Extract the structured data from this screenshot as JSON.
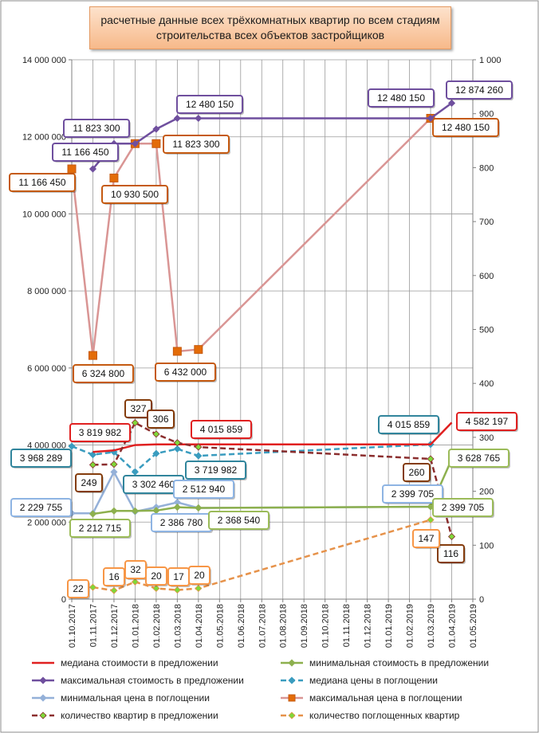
{
  "chart_data": {
    "type": "line",
    "title": "расчетные данные всех трёхкомнатных квартир по всем стадиям строительства всех объектов застройщиков",
    "x": [
      "01.10.2017",
      "01.11.2017",
      "01.12.2017",
      "01.01.2018",
      "01.02.2018",
      "01.03.2018",
      "01.04.2018",
      "01.05.2018",
      "01.06.2018",
      "01.07.2018",
      "01.08.2018",
      "01.09.2018",
      "01.10.2018",
      "01.11.2018",
      "01.12.2018",
      "01.01.2019",
      "01.02.2019",
      "01.03.2019",
      "01.04.2019",
      "01.05.2019"
    ],
    "y_left": {
      "ylim": [
        0,
        14000000
      ],
      "ticks": [
        "0",
        "2 000 000",
        "4 000 000",
        "6 000 000",
        "8 000 000",
        "10 000 000",
        "12 000 000",
        "14 000 000"
      ]
    },
    "y_right": {
      "ylim": [
        0,
        1000
      ],
      "ticks": [
        "0",
        "100",
        "200",
        "300",
        "400",
        "500",
        "600",
        "700",
        "800",
        "900",
        "1 000"
      ]
    },
    "grid": true,
    "legend_position": "bottom",
    "series": [
      {
        "name": "медиана стоимости в предложении",
        "axis": "left",
        "color": "#e02020",
        "dash": false,
        "marker": "none",
        "values": [
          null,
          3819982,
          3860000,
          4000000,
          4015859,
          4015859,
          4015859,
          null,
          null,
          null,
          null,
          null,
          null,
          null,
          null,
          null,
          null,
          4015859,
          4582197,
          null
        ]
      },
      {
        "name": "минимальная стоимость в предложении",
        "axis": "left",
        "color": "#8db04e",
        "dash": false,
        "marker": "diamond",
        "values": [
          null,
          2212715,
          2290000,
          2290000,
          2300000,
          2386780,
          2368540,
          null,
          null,
          null,
          null,
          null,
          null,
          null,
          null,
          null,
          null,
          2399705,
          3628765,
          null
        ]
      },
      {
        "name": "максимальная стоимость в предложении",
        "axis": "left",
        "color": "#6f4f9e",
        "dash": false,
        "marker": "diamond",
        "values": [
          null,
          11166450,
          11823300,
          11823300,
          12200000,
          12480150,
          12480150,
          null,
          null,
          null,
          null,
          null,
          null,
          null,
          null,
          null,
          null,
          12480150,
          12874260,
          null
        ]
      },
      {
        "name": "медиана цены в поглощении",
        "axis": "left",
        "color": "#3a9cbf",
        "dash": true,
        "marker": "diamond",
        "values": [
          3968289,
          3750000,
          3820000,
          3302460,
          3780000,
          3900000,
          3719982,
          null,
          null,
          null,
          null,
          null,
          null,
          null,
          null,
          null,
          null,
          4015859,
          null,
          null
        ]
      },
      {
        "name": "минимальная цена в поглощении",
        "axis": "left",
        "color": "#94b0d8",
        "dash": false,
        "marker": "diamond",
        "values": [
          2229755,
          2229755,
          3300000,
          2270000,
          2386780,
          2512940,
          2368540,
          null,
          null,
          null,
          null,
          null,
          null,
          null,
          null,
          null,
          null,
          2399705,
          null,
          null
        ]
      },
      {
        "name": "максимальная цена в поглощении",
        "axis": "left",
        "color": "#d99594",
        "dash": false,
        "marker": "square",
        "values": [
          11166450,
          6324800,
          10930500,
          11823300,
          11823300,
          6432000,
          6480000,
          null,
          null,
          null,
          null,
          null,
          null,
          null,
          null,
          null,
          null,
          12480150,
          null,
          null
        ]
      },
      {
        "name": "количество квартир в предложении",
        "axis": "right",
        "color": "#8b2e2e",
        "dash": true,
        "marker": "diamond",
        "values": [
          null,
          249,
          250,
          327,
          306,
          290,
          282,
          null,
          null,
          null,
          null,
          null,
          null,
          null,
          null,
          null,
          null,
          260,
          116,
          null
        ]
      },
      {
        "name": "количество поглощенных квартир",
        "axis": "right",
        "color": "#e6924a",
        "dash": true,
        "marker": "diamond",
        "values": [
          null,
          22,
          16,
          32,
          20,
          17,
          20,
          null,
          null,
          null,
          null,
          null,
          null,
          null,
          null,
          null,
          null,
          147,
          null,
          null
        ]
      }
    ],
    "annotations": [
      {
        "text": "11 166 450",
        "border": "#6f4f9e"
      },
      {
        "text": "11 823 300",
        "border": "#6f4f9e"
      },
      {
        "text": "12 480 150",
        "border": "#6f4f9e"
      },
      {
        "text": "12 480 150",
        "border": "#6f4f9e"
      },
      {
        "text": "12 874 260",
        "border": "#6f4f9e"
      },
      {
        "text": "11 166 450",
        "border": "#c55a11"
      },
      {
        "text": "10 930 500",
        "border": "#c55a11"
      },
      {
        "text": "11 823 300",
        "border": "#c55a11"
      },
      {
        "text": "12 480 150",
        "border": "#c55a11"
      },
      {
        "text": "6 324 800",
        "border": "#c55a11"
      },
      {
        "text": "6 432 000",
        "border": "#c55a11"
      },
      {
        "text": "3 819 982",
        "border": "#e02020"
      },
      {
        "text": "4 015 859",
        "border": "#e02020"
      },
      {
        "text": "4 582 197",
        "border": "#e02020"
      },
      {
        "text": "3 968 289",
        "border": "#31859c"
      },
      {
        "text": "3 302 460",
        "border": "#31859c"
      },
      {
        "text": "3 719 982",
        "border": "#31859c"
      },
      {
        "text": "4 015 859",
        "border": "#31859c"
      },
      {
        "text": "2 229 755",
        "border": "#8eb4e3"
      },
      {
        "text": "2 512 940",
        "border": "#8eb4e3"
      },
      {
        "text": "2 386 780",
        "border": "#8eb4e3"
      },
      {
        "text": "2 399 705",
        "border": "#8eb4e3"
      },
      {
        "text": "2 212 715",
        "border": "#9bbb59"
      },
      {
        "text": "2 368 540",
        "border": "#9bbb59"
      },
      {
        "text": "2 399 705",
        "border": "#9bbb59"
      },
      {
        "text": "3 628 765",
        "border": "#9bbb59"
      },
      {
        "text": "327",
        "border": "#843c0c"
      },
      {
        "text": "306",
        "border": "#843c0c"
      },
      {
        "text": "249",
        "border": "#843c0c"
      },
      {
        "text": "260",
        "border": "#843c0c"
      },
      {
        "text": "116",
        "border": "#843c0c"
      },
      {
        "text": "22",
        "border": "#f79646"
      },
      {
        "text": "16",
        "border": "#f79646"
      },
      {
        "text": "32",
        "border": "#f79646"
      },
      {
        "text": "20",
        "border": "#f79646"
      },
      {
        "text": "17",
        "border": "#f79646"
      },
      {
        "text": "20",
        "border": "#f79646"
      },
      {
        "text": "147",
        "border": "#f79646"
      }
    ]
  }
}
